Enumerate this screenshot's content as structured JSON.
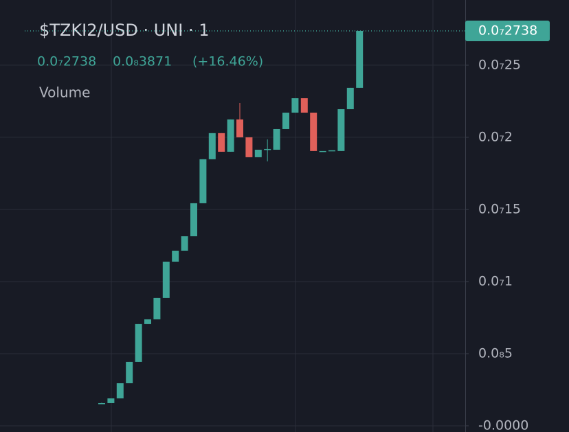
{
  "chart_data": {
    "type": "candlestick",
    "title": "$TZKI2/USD · UNI · 1",
    "indicator": "Volume",
    "last_price": {
      "value": 2.738e-08,
      "label": "0.0₇2738"
    },
    "change": {
      "value": 3.871e-09,
      "label": "0.0₈3871"
    },
    "change_pct": {
      "value": 16.46,
      "label": "(+16.46%)"
    },
    "up_color": "#3fa597",
    "down_color": "#e0605a",
    "open": [
      1.57e-09,
      1.57e-09,
      1.9e-09,
      2.95e-09,
      4.43e-09,
      7.05e-09,
      7.38e-09,
      8.86e-09,
      1.138e-08,
      1.214e-08,
      1.314e-08,
      1.543e-08,
      1.848e-08,
      2.029e-08,
      1.9e-08,
      2.124e-08,
      2e-08,
      1.862e-08,
      1.914e-08,
      1.914e-08,
      2.057e-08,
      2.171e-08,
      2.271e-08,
      2.171e-08,
      1.905e-08,
      1.905e-08,
      1.905e-08,
      2.195e-08,
      2.343e-08
    ],
    "high": [
      1.6e-09,
      1.9e-09,
      2.95e-09,
      4.43e-09,
      7.05e-09,
      7.38e-09,
      8.86e-09,
      1.138e-08,
      1.214e-08,
      1.314e-08,
      1.543e-08,
      1.848e-08,
      2.029e-08,
      2.029e-08,
      2.124e-08,
      2.238e-08,
      2e-08,
      1.914e-08,
      1.986e-08,
      2.057e-08,
      2.171e-08,
      2.271e-08,
      2.271e-08,
      2.171e-08,
      1.905e-08,
      1.91e-08,
      2.195e-08,
      2.343e-08,
      2.738e-08
    ],
    "low": [
      1.55e-09,
      1.57e-09,
      1.9e-09,
      2.95e-09,
      4.43e-09,
      7.05e-09,
      7.38e-09,
      8.86e-09,
      1.138e-08,
      1.214e-08,
      1.314e-08,
      1.543e-08,
      1.848e-08,
      1.9e-08,
      1.9e-08,
      2e-08,
      1.862e-08,
      1.862e-08,
      1.833e-08,
      1.914e-08,
      2.057e-08,
      2.171e-08,
      2.171e-08,
      1.905e-08,
      1.905e-08,
      1.905e-08,
      1.905e-08,
      2.195e-08,
      2.343e-08
    ],
    "close": [
      1.57e-09,
      1.9e-09,
      2.95e-09,
      4.43e-09,
      7.05e-09,
      7.38e-09,
      8.86e-09,
      1.138e-08,
      1.214e-08,
      1.314e-08,
      1.543e-08,
      1.848e-08,
      2.029e-08,
      1.9e-08,
      2.124e-08,
      2e-08,
      1.862e-08,
      1.914e-08,
      1.919e-08,
      2.057e-08,
      2.171e-08,
      2.271e-08,
      2.171e-08,
      1.905e-08,
      1.905e-08,
      1.91e-08,
      2.195e-08,
      2.343e-08,
      2.738e-08
    ],
    "ylim": [
      -4.3e-10,
      2.952e-08
    ],
    "yticks": [
      {
        "value": 0,
        "label": "-0.0000"
      },
      {
        "value": 5e-09,
        "label": "0.0₈5"
      },
      {
        "value": 1e-08,
        "label": "0.0₇1"
      },
      {
        "value": 1.5e-08,
        "label": "0.0₇15"
      },
      {
        "value": 2e-08,
        "label": "0.0₇2"
      },
      {
        "value": 2.5e-08,
        "label": "0.0₇25"
      }
    ],
    "grid": true
  }
}
